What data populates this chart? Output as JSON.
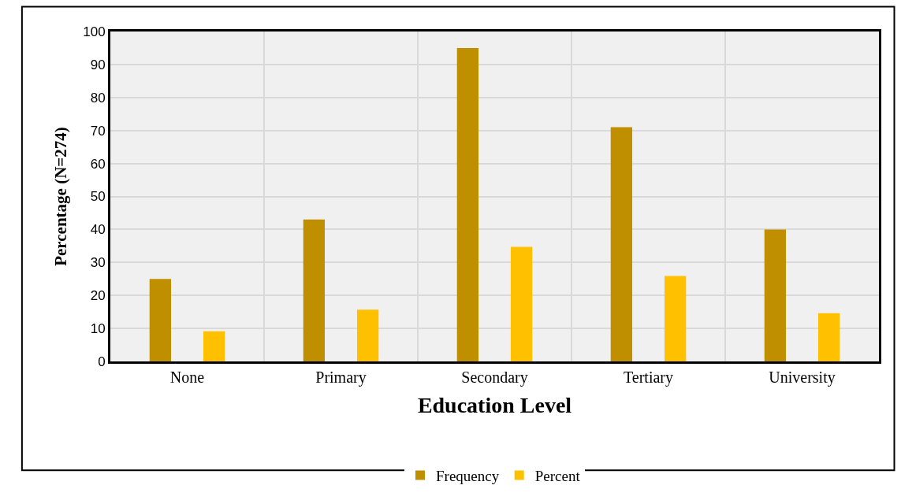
{
  "chart_data": {
    "type": "bar",
    "xlabel": "Education Level",
    "ylabel": "Percentage (N=274)",
    "categories": [
      "None",
      "Primary",
      "Secondary",
      "Tertiary",
      "University"
    ],
    "series": [
      {
        "name": "Frequency",
        "color": "#bf8f00",
        "values": [
          25,
          43,
          95,
          71,
          40
        ]
      },
      {
        "name": "Percent",
        "color": "#ffc000",
        "values": [
          9.1,
          15.7,
          34.7,
          25.9,
          14.6
        ]
      }
    ],
    "ylim": [
      0,
      100
    ],
    "yticks": [
      0,
      10,
      20,
      30,
      40,
      50,
      60,
      70,
      80,
      90,
      100
    ],
    "grid": true,
    "legend": "bottom"
  }
}
